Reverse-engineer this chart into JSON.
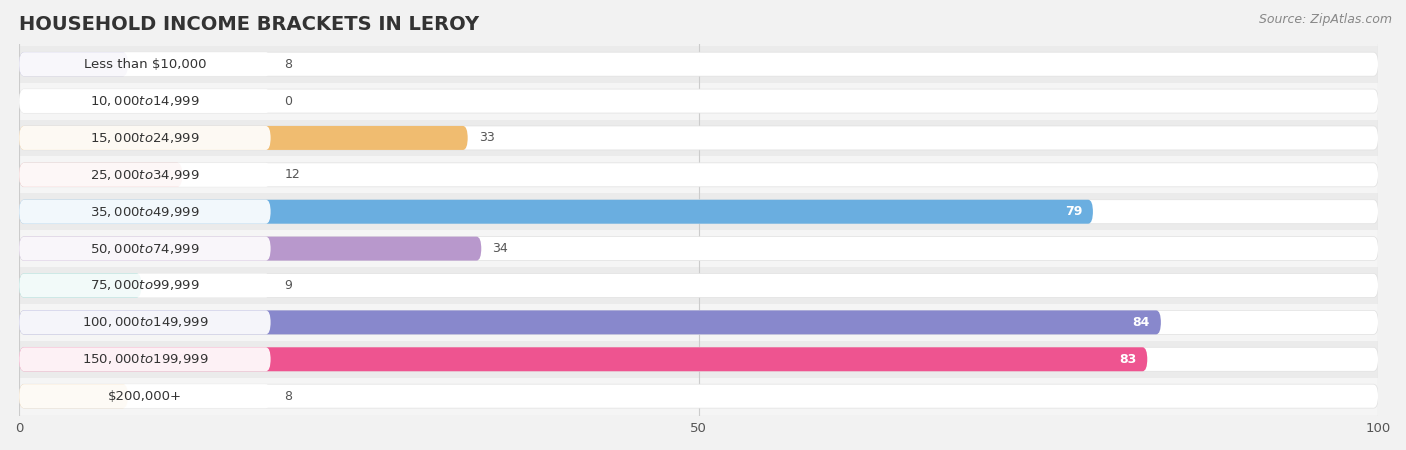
{
  "title": "HOUSEHOLD INCOME BRACKETS IN LEROY",
  "source": "Source: ZipAtlas.com",
  "categories": [
    "Less than $10,000",
    "$10,000 to $14,999",
    "$15,000 to $24,999",
    "$25,000 to $34,999",
    "$35,000 to $49,999",
    "$50,000 to $74,999",
    "$75,000 to $99,999",
    "$100,000 to $149,999",
    "$150,000 to $199,999",
    "$200,000+"
  ],
  "values": [
    8,
    0,
    33,
    12,
    79,
    34,
    9,
    84,
    83,
    8
  ],
  "bar_colors": [
    "#aba6d8",
    "#f09098",
    "#f0bc70",
    "#eda0a0",
    "#6aaee0",
    "#b898cc",
    "#68c8be",
    "#8888cc",
    "#ee5490",
    "#f0c890"
  ],
  "xlim": [
    0,
    100
  ],
  "xticks": [
    0,
    50,
    100
  ],
  "background_color": "#f2f2f2",
  "bar_bg_color": "#ffffff",
  "row_bg_color": "#efefef",
  "title_fontsize": 14,
  "source_fontsize": 9,
  "label_fontsize": 9.5,
  "value_fontsize": 9,
  "bar_height": 0.65,
  "value_threshold": 60
}
